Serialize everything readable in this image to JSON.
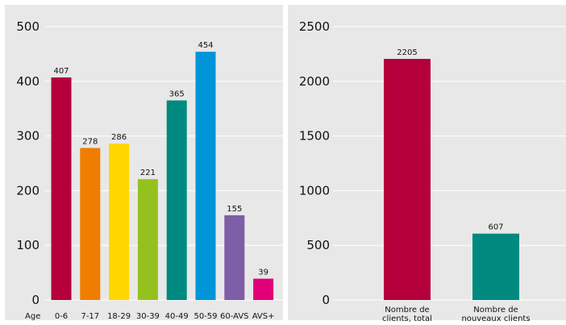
{
  "chart_data": [
    {
      "type": "bar",
      "x_axis_label": "Age",
      "categories": [
        "0-6",
        "7-17",
        "18-29",
        "30-39",
        "40-49",
        "50-59",
        "60-AVS",
        "AVS+"
      ],
      "values": [
        407,
        278,
        286,
        221,
        365,
        454,
        155,
        39
      ],
      "value_labels": [
        "407",
        "278",
        "286",
        "221",
        "365",
        "454",
        "155",
        "39"
      ],
      "colors": [
        "#b5003c",
        "#f07d00",
        "#ffd700",
        "#95c11f",
        "#008a7f",
        "#0095d8",
        "#7e5ea6",
        "#e2007a"
      ],
      "ylim": [
        0,
        500
      ],
      "yticks": [
        "0",
        "100",
        "200",
        "300",
        "400",
        "500"
      ],
      "grid": true
    },
    {
      "type": "bar",
      "categories": [
        [
          "Nombre de",
          "clients, total"
        ],
        [
          "Nombre de",
          "nouveaux clients"
        ]
      ],
      "values": [
        2205,
        607
      ],
      "value_labels": [
        "2205",
        "607"
      ],
      "colors": [
        "#b5003c",
        "#008a7f"
      ],
      "ylim": [
        0,
        2500
      ],
      "yticks": [
        "0",
        "500",
        "1000",
        "1500",
        "2000",
        "2500"
      ],
      "grid": true
    }
  ]
}
